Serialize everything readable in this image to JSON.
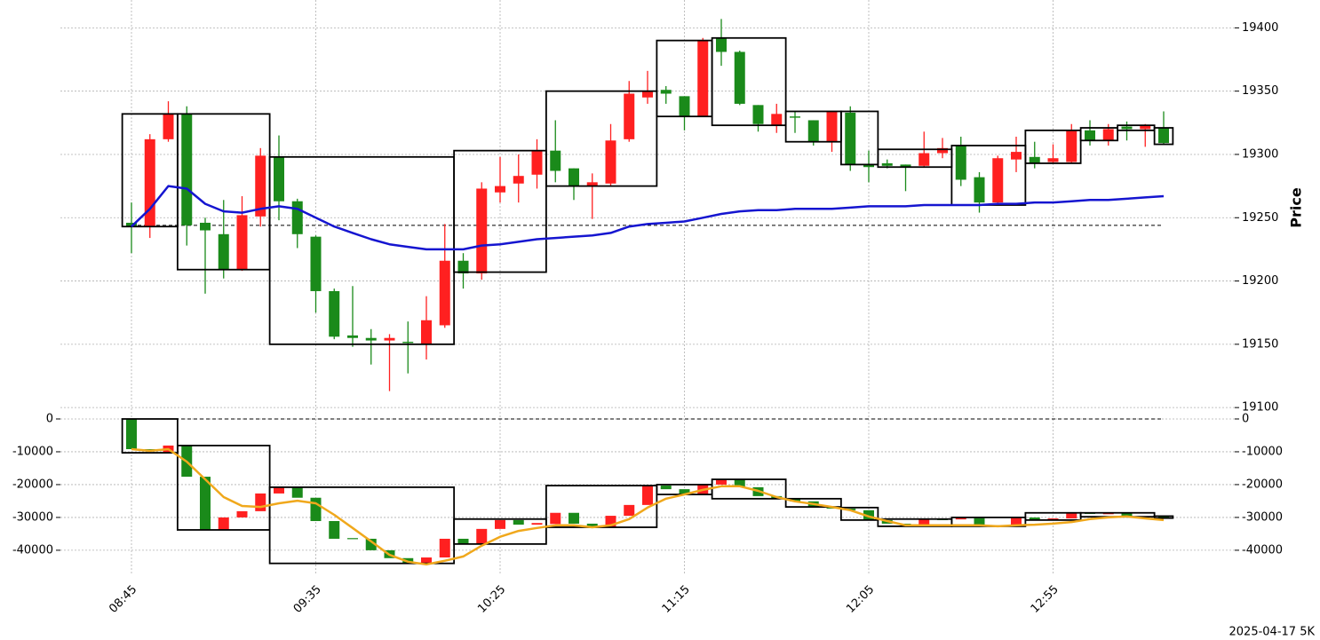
{
  "footer": "2025-04-17 5K",
  "chart_data": [
    {
      "type": "candlestick",
      "ylabel": "Price",
      "categories": [
        "08:45",
        null,
        null,
        null,
        null,
        null,
        null,
        null,
        null,
        null,
        "09:35",
        null,
        null,
        null,
        null,
        null,
        null,
        null,
        null,
        null,
        "10:25",
        null,
        null,
        null,
        null,
        null,
        null,
        null,
        null,
        null,
        "11:15",
        null,
        null,
        null,
        null,
        null,
        null,
        null,
        null,
        null,
        "12:05",
        null,
        null,
        null,
        null,
        null,
        null,
        null,
        null,
        null,
        "12:55",
        null,
        null,
        null,
        null,
        null,
        null
      ],
      "open": [
        19246,
        19243,
        19312,
        19332,
        19246,
        19237,
        19209,
        19251,
        19298,
        19263,
        19235,
        19192,
        19157,
        19155,
        19153,
        19152,
        19150,
        19165,
        19216,
        19206,
        19270,
        19277,
        19284,
        19303,
        19289,
        19275,
        19277,
        19312,
        19345,
        19351,
        19346,
        19330,
        19392,
        19381,
        19339,
        19323,
        19330,
        19327,
        19310,
        19333,
        19292,
        19293,
        19292,
        19291,
        19301,
        19307,
        19282,
        19262,
        19296,
        19298,
        19294,
        19294,
        19319,
        19311,
        19322,
        19320,
        19321
      ],
      "high": [
        19262,
        19316,
        19342,
        19338,
        19250,
        19264,
        19267,
        19305,
        19315,
        19265,
        19236,
        19194,
        19196,
        19162,
        19158,
        19168,
        19188,
        19245,
        19222,
        19278,
        19298,
        19300,
        19312,
        19327,
        19289,
        19285,
        19324,
        19358,
        19366,
        19354,
        19346,
        19392,
        19407,
        19382,
        19339,
        19340,
        19334,
        19327,
        19334,
        19338,
        19303,
        19296,
        19292,
        19318,
        19313,
        19314,
        19286,
        19299,
        19314,
        19310,
        19308,
        19324,
        19327,
        19324,
        19326,
        19324,
        19334
      ],
      "low": [
        19222,
        19234,
        19310,
        19228,
        19190,
        19202,
        19208,
        19243,
        19248,
        19226,
        19175,
        19154,
        19148,
        19134,
        19113,
        19127,
        19138,
        19163,
        19194,
        19201,
        19262,
        19262,
        19273,
        19278,
        19264,
        19249,
        19275,
        19310,
        19340,
        19340,
        19319,
        19330,
        19370,
        19339,
        19318,
        19317,
        19317,
        19307,
        19302,
        19287,
        19278,
        19289,
        19271,
        19290,
        19297,
        19275,
        19254,
        19260,
        19286,
        19289,
        19293,
        19293,
        19307,
        19307,
        19311,
        19306,
        19308
      ],
      "close": [
        19243,
        19312,
        19332,
        19244,
        19240,
        19209,
        19252,
        19299,
        19263,
        19237,
        19192,
        19156,
        19155,
        19153,
        19155,
        19151,
        19169,
        19216,
        19206,
        19273,
        19275,
        19283,
        19303,
        19287,
        19275,
        19278,
        19311,
        19348,
        19350,
        19348,
        19330,
        19390,
        19381,
        19340,
        19324,
        19332,
        19329,
        19310,
        19334,
        19292,
        19290,
        19291,
        19290,
        19301,
        19305,
        19280,
        19262,
        19297,
        19302,
        19293,
        19297,
        19319,
        19311,
        19320,
        19320,
        19323,
        19309
      ],
      "up_color": "#ff2020",
      "down_color": "#1a8a1a",
      "line": {
        "color": "#1515d0",
        "values": [
          19243,
          19257,
          19275,
          19273,
          19261,
          19255,
          19254,
          19257,
          19259,
          19257,
          19250,
          19243,
          19238,
          19233,
          19229,
          19227,
          19225,
          19225,
          19225,
          19228,
          19229,
          19231,
          19233,
          19234,
          19235,
          19236,
          19238,
          19243,
          19245,
          19246,
          19247,
          19250,
          19253,
          19255,
          19256,
          19256,
          19257,
          19257,
          19257,
          19258,
          19259,
          19259,
          19259,
          19260,
          19260,
          19260,
          19260,
          19261,
          19261,
          19262,
          19262,
          19263,
          19264,
          19264,
          19265,
          19266,
          19267
        ]
      },
      "boxes": [
        {
          "start": 0,
          "end": 2,
          "high": 19332,
          "low": 19243
        },
        {
          "start": 3,
          "end": 7,
          "high": 19332,
          "low": 19209
        },
        {
          "start": 8,
          "end": 17,
          "high": 19298,
          "low": 19150
        },
        {
          "start": 18,
          "end": 22,
          "high": 19303,
          "low": 19207
        },
        {
          "start": 23,
          "end": 28,
          "high": 19350,
          "low": 19275
        },
        {
          "start": 29,
          "end": 31,
          "high": 19390,
          "low": 19330
        },
        {
          "start": 32,
          "end": 35,
          "high": 19392,
          "low": 19323
        },
        {
          "start": 36,
          "end": 38,
          "high": 19334,
          "low": 19310
        },
        {
          "start": 39,
          "end": 40,
          "high": 19334,
          "low": 19292
        },
        {
          "start": 41,
          "end": 44,
          "high": 19304,
          "low": 19290
        },
        {
          "start": 45,
          "end": 48,
          "high": 19307,
          "low": 19260
        },
        {
          "start": 49,
          "end": 51,
          "high": 19319,
          "low": 19293
        },
        {
          "start": 52,
          "end": 53,
          "high": 19321,
          "low": 19311
        },
        {
          "start": 54,
          "end": 55,
          "high": 19323,
          "low": 19319
        },
        {
          "start": 56,
          "end": 56,
          "high": 19321,
          "low": 19308
        }
      ],
      "hline": 19244,
      "ylim": [
        19098,
        19422
      ],
      "yticks": [
        19100,
        19150,
        19200,
        19250,
        19300,
        19350,
        19400
      ],
      "grid": true,
      "left_axis": false
    },
    {
      "type": "candlestick",
      "open": [
        0,
        -9200,
        -10300,
        -8100,
        -17600,
        -33800,
        -30000,
        -28100,
        -22700,
        -20800,
        -24000,
        -31100,
        -36300,
        -36500,
        -40000,
        -42400,
        -44000,
        -42200,
        -36500,
        -38100,
        -33500,
        -30800,
        -32200,
        -32000,
        -28600,
        -31900,
        -33000,
        -29500,
        -26200,
        -20300,
        -21400,
        -23000,
        -20000,
        -18400,
        -20800,
        -23500,
        -24300,
        -25100,
        -26800,
        -27300,
        -27800,
        -30800,
        -31900,
        -32400,
        -30500,
        -30600,
        -30200,
        -32400,
        -32700,
        -30000,
        -30800,
        -30300,
        -28600,
        -28900,
        -28700,
        -29800,
        -29600
      ],
      "close": [
        -9200,
        -9700,
        -8100,
        -17600,
        -33800,
        -30000,
        -28100,
        -22700,
        -20800,
        -24000,
        -31100,
        -36500,
        -36600,
        -40000,
        -42400,
        -44000,
        -42200,
        -36500,
        -38100,
        -33500,
        -30800,
        -32200,
        -31700,
        -28600,
        -31900,
        -33000,
        -29500,
        -26200,
        -20300,
        -21400,
        -23000,
        -20000,
        -18400,
        -20800,
        -23500,
        -24300,
        -25100,
        -26800,
        -27300,
        -27800,
        -30800,
        -31900,
        -32400,
        -30500,
        -30600,
        -30200,
        -32400,
        -32700,
        -30000,
        -30800,
        -30300,
        -28600,
        -28900,
        -28700,
        -29800,
        -29600,
        -30200
      ],
      "up_color": "#ff2020",
      "down_color": "#1a8a1a",
      "line": {
        "color": "#f0a81c",
        "values": [
          -9200,
          -9700,
          -9200,
          -13000,
          -18400,
          -23800,
          -26500,
          -26800,
          -25700,
          -24900,
          -25700,
          -29200,
          -33200,
          -37300,
          -41400,
          -43500,
          -44300,
          -43200,
          -41900,
          -38600,
          -35900,
          -34100,
          -33200,
          -32400,
          -32400,
          -33000,
          -32400,
          -30500,
          -27000,
          -24300,
          -23000,
          -21600,
          -20500,
          -20500,
          -21900,
          -23800,
          -25100,
          -25900,
          -26800,
          -27800,
          -29700,
          -31100,
          -32400,
          -32400,
          -32400,
          -32400,
          -32400,
          -32700,
          -32400,
          -32200,
          -31900,
          -31400,
          -30500,
          -30000,
          -29700,
          -30300,
          -30800
        ]
      },
      "boxes": [
        {
          "start": 0,
          "end": 2,
          "high": 0,
          "low": -10300
        },
        {
          "start": 3,
          "end": 7,
          "high": -8100,
          "low": -33800
        },
        {
          "start": 8,
          "end": 17,
          "high": -20800,
          "low": -44000
        },
        {
          "start": 18,
          "end": 22,
          "high": -30500,
          "low": -38100
        },
        {
          "start": 23,
          "end": 28,
          "high": -20300,
          "low": -33000
        },
        {
          "start": 29,
          "end": 31,
          "high": -20000,
          "low": -23000
        },
        {
          "start": 32,
          "end": 35,
          "high": -18400,
          "low": -24300
        },
        {
          "start": 36,
          "end": 38,
          "high": -24300,
          "low": -26800
        },
        {
          "start": 39,
          "end": 40,
          "high": -27000,
          "low": -30800
        },
        {
          "start": 41,
          "end": 44,
          "high": -30500,
          "low": -32700
        },
        {
          "start": 45,
          "end": 48,
          "high": -30000,
          "low": -32700
        },
        {
          "start": 49,
          "end": 51,
          "high": -28600,
          "low": -30800
        },
        {
          "start": 52,
          "end": 55,
          "high": -28600,
          "low": -29800
        },
        {
          "start": 56,
          "end": 56,
          "high": -29600,
          "low": -30200
        }
      ],
      "hline": 0,
      "ylim": [
        -47600,
        2700
      ],
      "yticks": [
        0,
        -10000,
        -20000,
        -30000,
        -40000
      ],
      "grid": true,
      "left_axis": true
    }
  ]
}
